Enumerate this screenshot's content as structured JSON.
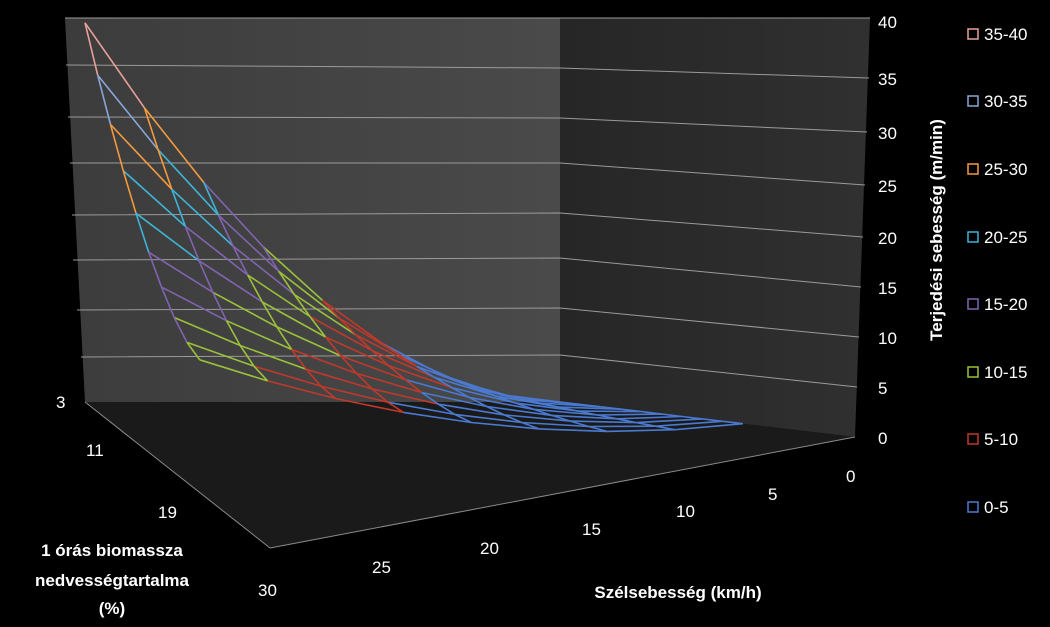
{
  "chart_data": {
    "type": "surface",
    "grid": true,
    "legend_position": "right",
    "zlabel": "Terjedési sebesség (m/min)",
    "xlabel": "Szélsebesség (km/h)",
    "ylabel_lines": [
      "1 órás biomassza",
      "nedvességtartalma",
      "(%)"
    ],
    "z_ticks": [
      "0",
      "5",
      "10",
      "15",
      "20",
      "25",
      "30",
      "35",
      "40"
    ],
    "wind_ticks": [
      "0",
      "5",
      "10",
      "15",
      "20",
      "25",
      "30"
    ],
    "moisture_ticks": [
      "3",
      "11",
      "19",
      "30"
    ],
    "zlim": [
      0,
      40
    ],
    "legend": [
      {
        "label": "35-40",
        "color": "#e8a09a"
      },
      {
        "label": "30-35",
        "color": "#8aa5d6"
      },
      {
        "label": "25-30",
        "color": "#f39a3f"
      },
      {
        "label": "20-25",
        "color": "#3fb3d6"
      },
      {
        "label": "15-20",
        "color": "#8064b0"
      },
      {
        "label": "10-15",
        "color": "#9bc13a"
      },
      {
        "label": "5-10",
        "color": "#c0392b"
      },
      {
        "label": "0-5",
        "color": "#4a7ad0"
      }
    ]
  }
}
